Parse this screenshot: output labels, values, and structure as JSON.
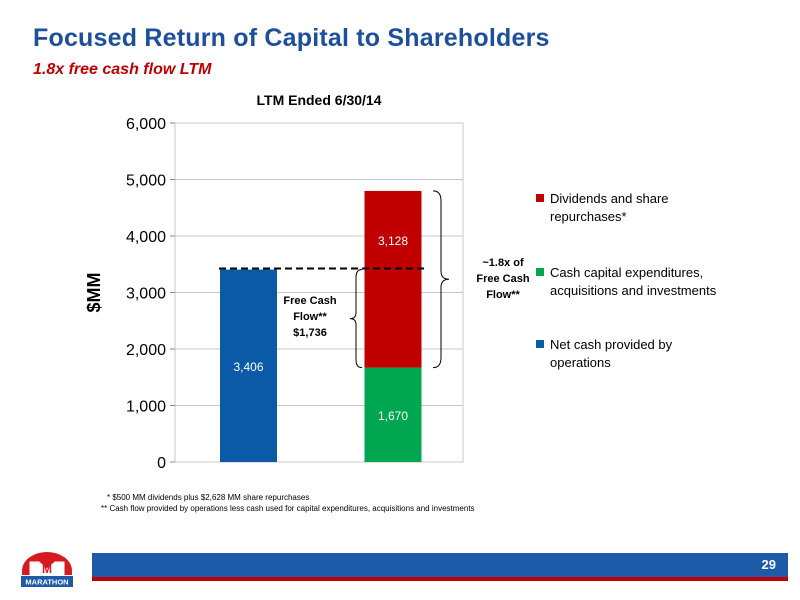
{
  "header": {
    "title": "Focused Return of Capital to Shareholders",
    "subtitle": "1.8x free cash flow LTM"
  },
  "chart_data": {
    "type": "bar",
    "title": "LTM Ended 6/30/14",
    "ylabel": "$MM",
    "xlabel": "",
    "ylim": [
      0,
      6000
    ],
    "yticks": [
      0,
      1000,
      2000,
      3000,
      4000,
      5000,
      6000
    ],
    "ytick_labels": [
      "0",
      "1,000",
      "2,000",
      "3,000",
      "4,000",
      "5,000",
      "6,000"
    ],
    "grid": true,
    "stacked": true,
    "legend_position": "right",
    "series": [
      {
        "name": "Net cash provided by operations",
        "color": "#0b5aa8",
        "values": [
          3406,
          0
        ],
        "labels": [
          "3,406",
          ""
        ]
      },
      {
        "name": "Cash capital expenditures, acquisitions and investments",
        "color": "#00a650",
        "values": [
          0,
          1670
        ],
        "labels": [
          "",
          "1,670"
        ]
      },
      {
        "name": "Dividends and share repurchases*",
        "color": "#c00000",
        "values": [
          0,
          3128
        ],
        "labels": [
          "",
          "3,128"
        ]
      }
    ],
    "annotations": {
      "free_cash_flow": {
        "lines": [
          "Free Cash",
          "Flow**",
          "$1,736"
        ],
        "value": 1736
      },
      "multiple": {
        "lines": [
          "~1.8x of",
          "Free Cash",
          "Flow**"
        ]
      },
      "reference_line_value": 3406
    }
  },
  "legend": {
    "items": [
      {
        "lines": [
          "Dividends and share",
          "repurchases*"
        ],
        "color": "#c00000"
      },
      {
        "lines": [
          "Cash capital expenditures,",
          "acquisitions and investments"
        ],
        "color": "#00a650"
      },
      {
        "lines": [
          "Net cash provided by",
          "operations"
        ],
        "color": "#0b5aa8"
      }
    ]
  },
  "footnotes": {
    "note1": "* $500 MM dividends plus $2,628 MM share repurchases",
    "note2": "** Cash flow provided by operations less cash used for capital expenditures, acquisitions and investments"
  },
  "footer": {
    "page_number": "29",
    "logo_text": "MARATHON",
    "logo_letter": "M",
    "colors": {
      "blue": "#1d5aa8",
      "red": "#c00000"
    }
  }
}
